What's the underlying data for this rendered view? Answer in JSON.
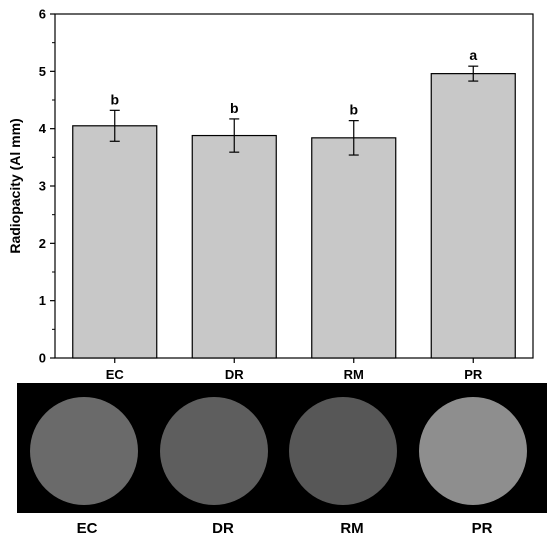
{
  "chart_data": {
    "type": "bar",
    "title": "",
    "xlabel": "",
    "ylabel": "Radiopacity (Al mm)",
    "ylim": [
      0,
      6
    ],
    "yticks": [
      "0",
      "1",
      "2",
      "3",
      "4",
      "5",
      "6"
    ],
    "categories": [
      "EC",
      "DR",
      "RM",
      "PR"
    ],
    "values": [
      4.05,
      3.88,
      3.84,
      4.96
    ],
    "errors": [
      0.27,
      0.29,
      0.3,
      0.13
    ],
    "significance": [
      "b",
      "b",
      "b",
      "a"
    ],
    "colors": {
      "bar": "#c8c8c8",
      "edge": "#000000"
    }
  },
  "radiograph": {
    "labels": [
      "EC",
      "DR",
      "RM",
      "PR"
    ],
    "disc_colors": [
      "#6a6a6a",
      "#5e5e5e",
      "#575757",
      "#8e8e8e"
    ]
  }
}
